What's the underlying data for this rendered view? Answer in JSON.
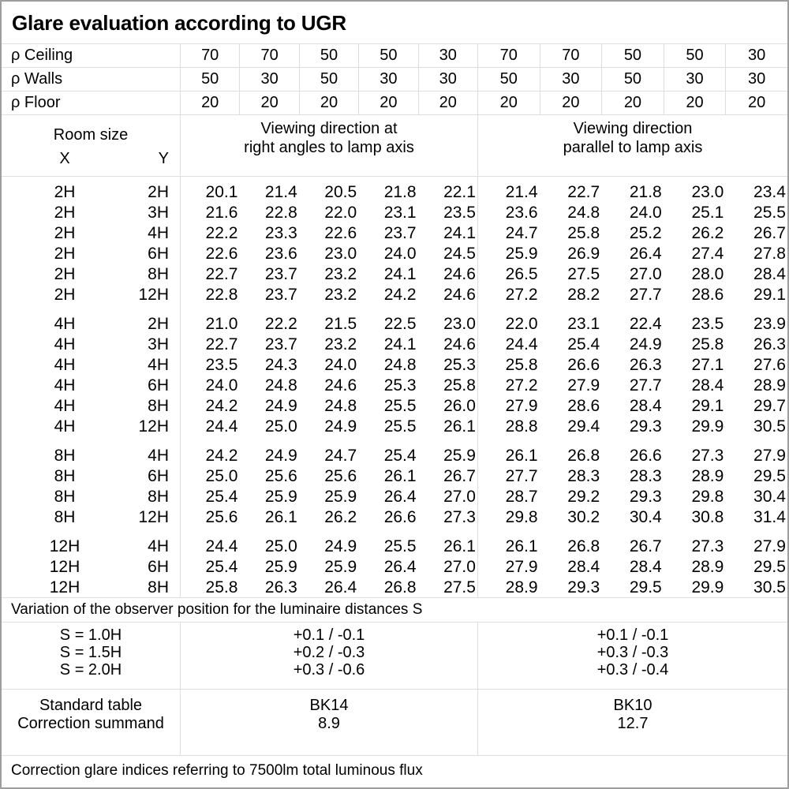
{
  "title": "Glare evaluation according to UGR",
  "reflectance": {
    "rows": [
      {
        "label": "ρ Ceiling",
        "values": [
          "70",
          "70",
          "50",
          "50",
          "30",
          "70",
          "70",
          "50",
          "50",
          "30"
        ]
      },
      {
        "label": "ρ Walls",
        "values": [
          "50",
          "30",
          "50",
          "30",
          "30",
          "50",
          "30",
          "50",
          "30",
          "30"
        ]
      },
      {
        "label": "ρ Floor",
        "values": [
          "20",
          "20",
          "20",
          "20",
          "20",
          "20",
          "20",
          "20",
          "20",
          "20"
        ]
      }
    ]
  },
  "header": {
    "room_size": "Room size",
    "x": "X",
    "y": "Y",
    "group_right_angles": [
      "Viewing direction at",
      "right angles to lamp axis"
    ],
    "group_parallel": [
      "Viewing direction",
      "parallel to lamp axis"
    ]
  },
  "ugr_table": {
    "blocks": [
      {
        "rows": [
          {
            "x": "2H",
            "y": "2H",
            "values": [
              "20.1",
              "21.4",
              "20.5",
              "21.8",
              "22.1",
              "21.4",
              "22.7",
              "21.8",
              "23.0",
              "23.4"
            ]
          },
          {
            "x": "2H",
            "y": "3H",
            "values": [
              "21.6",
              "22.8",
              "22.0",
              "23.1",
              "23.5",
              "23.6",
              "24.8",
              "24.0",
              "25.1",
              "25.5"
            ]
          },
          {
            "x": "2H",
            "y": "4H",
            "values": [
              "22.2",
              "23.3",
              "22.6",
              "23.7",
              "24.1",
              "24.7",
              "25.8",
              "25.2",
              "26.2",
              "26.7"
            ]
          },
          {
            "x": "2H",
            "y": "6H",
            "values": [
              "22.6",
              "23.6",
              "23.0",
              "24.0",
              "24.5",
              "25.9",
              "26.9",
              "26.4",
              "27.4",
              "27.8"
            ]
          },
          {
            "x": "2H",
            "y": "8H",
            "values": [
              "22.7",
              "23.7",
              "23.2",
              "24.1",
              "24.6",
              "26.5",
              "27.5",
              "27.0",
              "28.0",
              "28.4"
            ]
          },
          {
            "x": "2H",
            "y": "12H",
            "values": [
              "22.8",
              "23.7",
              "23.2",
              "24.2",
              "24.6",
              "27.2",
              "28.2",
              "27.7",
              "28.6",
              "29.1"
            ]
          }
        ]
      },
      {
        "rows": [
          {
            "x": "4H",
            "y": "2H",
            "values": [
              "21.0",
              "22.2",
              "21.5",
              "22.5",
              "23.0",
              "22.0",
              "23.1",
              "22.4",
              "23.5",
              "23.9"
            ]
          },
          {
            "x": "4H",
            "y": "3H",
            "values": [
              "22.7",
              "23.7",
              "23.2",
              "24.1",
              "24.6",
              "24.4",
              "25.4",
              "24.9",
              "25.8",
              "26.3"
            ]
          },
          {
            "x": "4H",
            "y": "4H",
            "values": [
              "23.5",
              "24.3",
              "24.0",
              "24.8",
              "25.3",
              "25.8",
              "26.6",
              "26.3",
              "27.1",
              "27.6"
            ]
          },
          {
            "x": "4H",
            "y": "6H",
            "values": [
              "24.0",
              "24.8",
              "24.6",
              "25.3",
              "25.8",
              "27.2",
              "27.9",
              "27.7",
              "28.4",
              "28.9"
            ]
          },
          {
            "x": "4H",
            "y": "8H",
            "values": [
              "24.2",
              "24.9",
              "24.8",
              "25.5",
              "26.0",
              "27.9",
              "28.6",
              "28.4",
              "29.1",
              "29.7"
            ]
          },
          {
            "x": "4H",
            "y": "12H",
            "values": [
              "24.4",
              "25.0",
              "24.9",
              "25.5",
              "26.1",
              "28.8",
              "29.4",
              "29.3",
              "29.9",
              "30.5"
            ]
          }
        ]
      },
      {
        "rows": [
          {
            "x": "8H",
            "y": "4H",
            "values": [
              "24.2",
              "24.9",
              "24.7",
              "25.4",
              "25.9",
              "26.1",
              "26.8",
              "26.6",
              "27.3",
              "27.9"
            ]
          },
          {
            "x": "8H",
            "y": "6H",
            "values": [
              "25.0",
              "25.6",
              "25.6",
              "26.1",
              "26.7",
              "27.7",
              "28.3",
              "28.3",
              "28.9",
              "29.5"
            ]
          },
          {
            "x": "8H",
            "y": "8H",
            "values": [
              "25.4",
              "25.9",
              "25.9",
              "26.4",
              "27.0",
              "28.7",
              "29.2",
              "29.3",
              "29.8",
              "30.4"
            ]
          },
          {
            "x": "8H",
            "y": "12H",
            "values": [
              "25.6",
              "26.1",
              "26.2",
              "26.6",
              "27.3",
              "29.8",
              "30.2",
              "30.4",
              "30.8",
              "31.4"
            ]
          }
        ]
      },
      {
        "rows": [
          {
            "x": "12H",
            "y": "4H",
            "values": [
              "24.4",
              "25.0",
              "24.9",
              "25.5",
              "26.1",
              "26.1",
              "26.8",
              "26.7",
              "27.3",
              "27.9"
            ]
          },
          {
            "x": "12H",
            "y": "6H",
            "values": [
              "25.4",
              "25.9",
              "25.9",
              "26.4",
              "27.0",
              "27.9",
              "28.4",
              "28.4",
              "28.9",
              "29.5"
            ]
          },
          {
            "x": "12H",
            "y": "8H",
            "values": [
              "25.8",
              "26.3",
              "26.4",
              "26.8",
              "27.5",
              "28.9",
              "29.3",
              "29.5",
              "29.9",
              "30.5"
            ]
          }
        ]
      }
    ]
  },
  "variation_note": "Variation of the observer position for the luminaire distances S",
  "s_variation": {
    "rows": [
      {
        "label": "S = 1.0H",
        "right_angles": "+0.1 / -0.1",
        "parallel": "+0.1 / -0.1"
      },
      {
        "label": "S = 1.5H",
        "right_angles": "+0.2 / -0.3",
        "parallel": "+0.3 / -0.3"
      },
      {
        "label": "S = 2.0H",
        "right_angles": "+0.3 / -0.6",
        "parallel": "+0.3 / -0.4"
      }
    ]
  },
  "standard": {
    "row_label_1": "Standard table",
    "row_label_2": "Correction summand",
    "right_angles_table": "BK14",
    "right_angles_summand": "8.9",
    "parallel_table": "BK10",
    "parallel_summand": "12.7"
  },
  "footer_note": "Correction glare indices referring to 7500lm total luminous flux",
  "colors": {
    "grid_line": "#dedede",
    "outer_border": "#9e9e9e",
    "text": "#000000"
  }
}
